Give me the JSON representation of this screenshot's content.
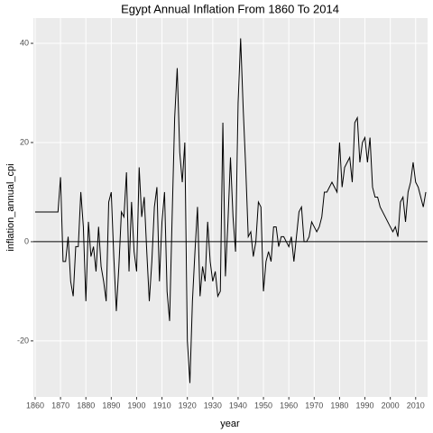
{
  "chart_data": {
    "type": "line",
    "title": "Egypt Annual Inflation From 1860 To 2014",
    "x_label": "year",
    "y_label": "inflation_annual_cpi",
    "x": [
      1860,
      1861,
      1862,
      1863,
      1864,
      1865,
      1866,
      1867,
      1868,
      1869,
      1870,
      1871,
      1872,
      1873,
      1874,
      1875,
      1876,
      1877,
      1878,
      1879,
      1880,
      1881,
      1882,
      1883,
      1884,
      1885,
      1886,
      1887,
      1888,
      1889,
      1890,
      1891,
      1892,
      1893,
      1894,
      1895,
      1896,
      1897,
      1898,
      1899,
      1900,
      1901,
      1902,
      1903,
      1904,
      1905,
      1906,
      1907,
      1908,
      1909,
      1910,
      1911,
      1912,
      1913,
      1914,
      1915,
      1916,
      1917,
      1918,
      1919,
      1920,
      1921,
      1922,
      1923,
      1924,
      1925,
      1926,
      1927,
      1928,
      1929,
      1930,
      1931,
      1932,
      1933,
      1934,
      1935,
      1936,
      1937,
      1938,
      1939,
      1940,
      1941,
      1942,
      1943,
      1944,
      1945,
      1946,
      1947,
      1948,
      1949,
      1950,
      1951,
      1952,
      1953,
      1954,
      1955,
      1956,
      1957,
      1958,
      1959,
      1960,
      1961,
      1962,
      1963,
      1964,
      1965,
      1966,
      1967,
      1968,
      1969,
      1970,
      1971,
      1972,
      1973,
      1974,
      1975,
      1976,
      1977,
      1978,
      1979,
      1980,
      1981,
      1982,
      1983,
      1984,
      1985,
      1986,
      1987,
      1988,
      1989,
      1990,
      1991,
      1992,
      1993,
      1994,
      1995,
      1996,
      1997,
      1998,
      1999,
      2000,
      2001,
      2002,
      2003,
      2004,
      2005,
      2006,
      2007,
      2008,
      2009,
      2010,
      2011,
      2012,
      2013,
      2014
    ],
    "series": [
      {
        "name": "inflation_annual_cpi",
        "color": "#000000",
        "values": [
          6,
          6,
          6,
          6,
          6,
          6,
          6,
          6,
          6,
          6,
          13,
          -4,
          -4,
          1,
          -8,
          -11,
          -1,
          -1,
          10,
          3,
          -12,
          4,
          -3,
          -1,
          -6,
          3,
          -5,
          -8,
          -12,
          8,
          10,
          -3,
          -14,
          -5,
          6,
          5,
          14,
          -6,
          8,
          -2,
          -6,
          15,
          5,
          9,
          -2,
          -12,
          -4,
          7,
          11,
          -8,
          4,
          10,
          -10,
          -16,
          5,
          25,
          35,
          18,
          12,
          20,
          -20,
          -28.5,
          -12,
          -2,
          7,
          -11,
          -5,
          -8,
          4,
          -4,
          -8,
          -6,
          -11,
          -10,
          24,
          -7,
          4,
          17,
          5,
          -2,
          28,
          41,
          27,
          15,
          1,
          2,
          -3,
          0,
          8,
          7,
          -10,
          -4,
          -2,
          -4,
          3,
          3,
          -1,
          1,
          1,
          0,
          -1,
          1,
          -4,
          1,
          6,
          7,
          0,
          0,
          1,
          4,
          3,
          2,
          3,
          5,
          10,
          10,
          11,
          12,
          11,
          10,
          20,
          11,
          15,
          16,
          17,
          12,
          24,
          25,
          16,
          20,
          21,
          16,
          21,
          11,
          9,
          9,
          7,
          6,
          5,
          4,
          3,
          2,
          3,
          1,
          8,
          9,
          4,
          10,
          12,
          16,
          12,
          11,
          9,
          7,
          10
        ]
      }
    ],
    "hline": 0,
    "xlim": [
      1859.3,
      2014.7
    ],
    "xticks": [
      1860,
      1870,
      1880,
      1890,
      1900,
      1910,
      1920,
      1930,
      1940,
      1950,
      1960,
      1970,
      1980,
      1990,
      2000,
      2010
    ],
    "ylim": [
      -31.3,
      45.1
    ],
    "yticks": [
      -20,
      0,
      20,
      40
    ],
    "grid": true
  }
}
